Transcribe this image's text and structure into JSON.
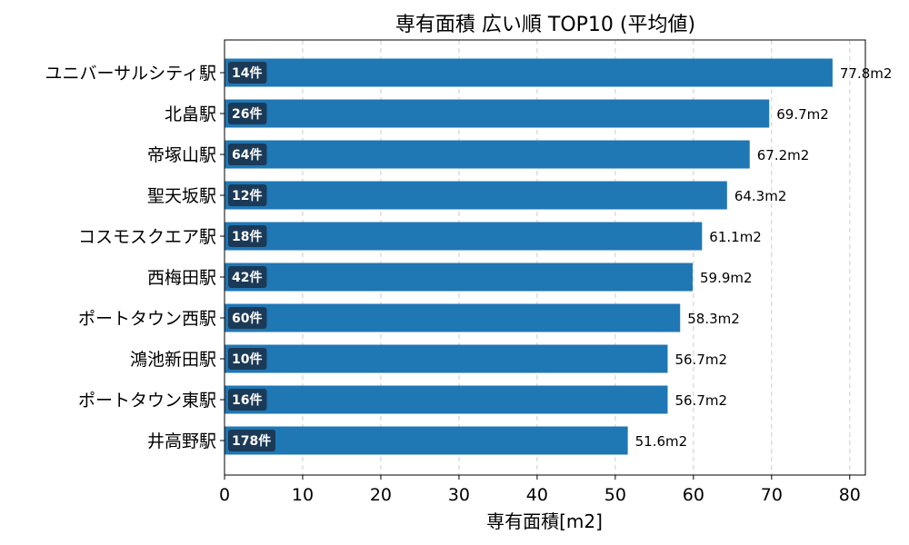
{
  "chart_data": {
    "type": "bar",
    "orientation": "horizontal",
    "title": "専有面積 広い順 TOP10 (平均値)",
    "xlabel": "専有面積[m2]",
    "ylabel": "",
    "xlim": [
      0,
      82
    ],
    "xticks": [
      0,
      10,
      20,
      30,
      40,
      50,
      60,
      70,
      80
    ],
    "grid": "x-dashed",
    "categories": [
      "ユニバーサルシティ駅",
      "北畠駅",
      "帝塚山駅",
      "聖天坂駅",
      "コスモスクエア駅",
      "西梅田駅",
      "ポートタウン西駅",
      "鴻池新田駅",
      "ポートタウン東駅",
      "井高野駅"
    ],
    "values": [
      77.8,
      69.7,
      67.2,
      64.3,
      61.1,
      59.9,
      58.3,
      56.7,
      56.7,
      51.6
    ],
    "value_labels": [
      "77.8m2",
      "69.7m2",
      "67.2m2",
      "64.3m2",
      "61.1m2",
      "59.9m2",
      "58.3m2",
      "56.7m2",
      "56.7m2",
      "51.6m2"
    ],
    "counts": [
      "14件",
      "26件",
      "64件",
      "12件",
      "18件",
      "42件",
      "60件",
      "10件",
      "16件",
      "178件"
    ],
    "colors": {
      "bar": "#1f77b4",
      "badge": "#1b3a57",
      "grid": "#cccccc"
    }
  }
}
